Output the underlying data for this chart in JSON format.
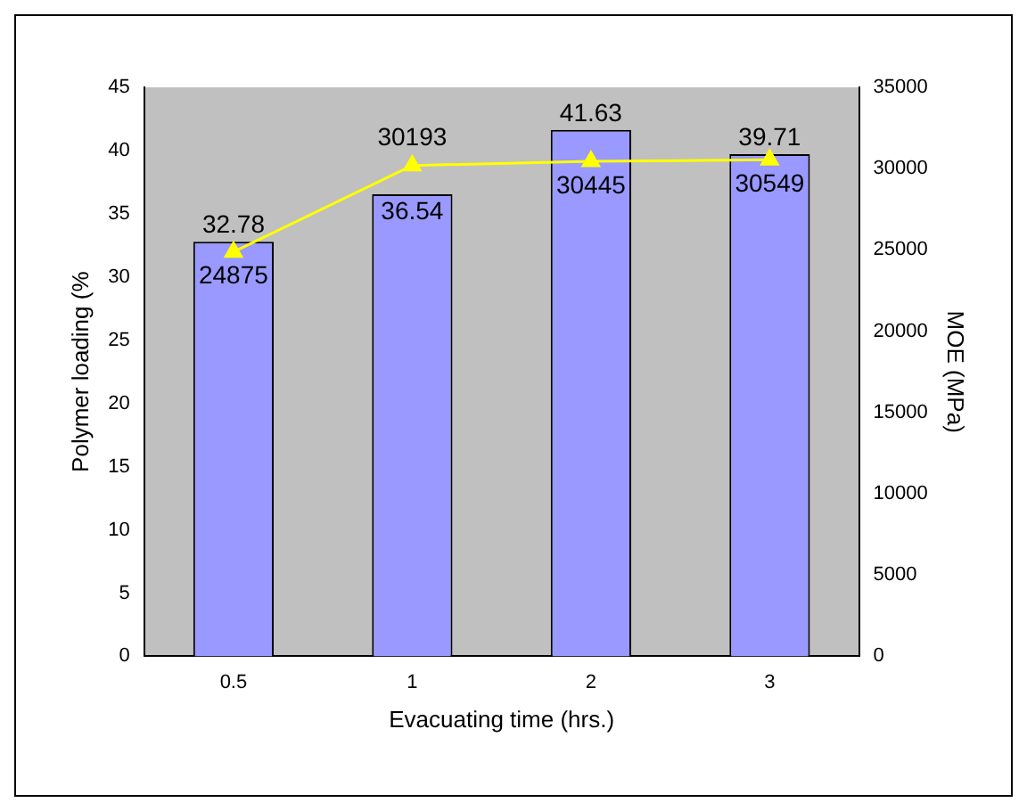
{
  "chart_data": {
    "type": "bar",
    "xlabel": "Evacuating time (hrs.)",
    "ylabel": "Polymer loading (%",
    "y2label": "MOE (MPa)",
    "categories": [
      "0.5",
      "1",
      "2",
      "3"
    ],
    "series": [
      {
        "color": "#9999ff",
        "values": [
          32.78,
          36.54,
          41.63,
          39.71
        ]
      },
      {
        "type": "line",
        "axis": "y2",
        "color": "#ffff00",
        "marker": "triangle",
        "values": [
          24875,
          30193,
          30445,
          30549
        ]
      }
    ],
    "ylim": [
      0,
      45
    ],
    "yticks": [
      0,
      5,
      10,
      15,
      20,
      25,
      30,
      35,
      40,
      45
    ],
    "y2lim": [
      0,
      35000
    ],
    "y2ticks": [
      0,
      5000,
      10000,
      15000,
      20000,
      25000,
      30000,
      35000
    ],
    "data_labels": true,
    "grid": false,
    "legend": false
  }
}
